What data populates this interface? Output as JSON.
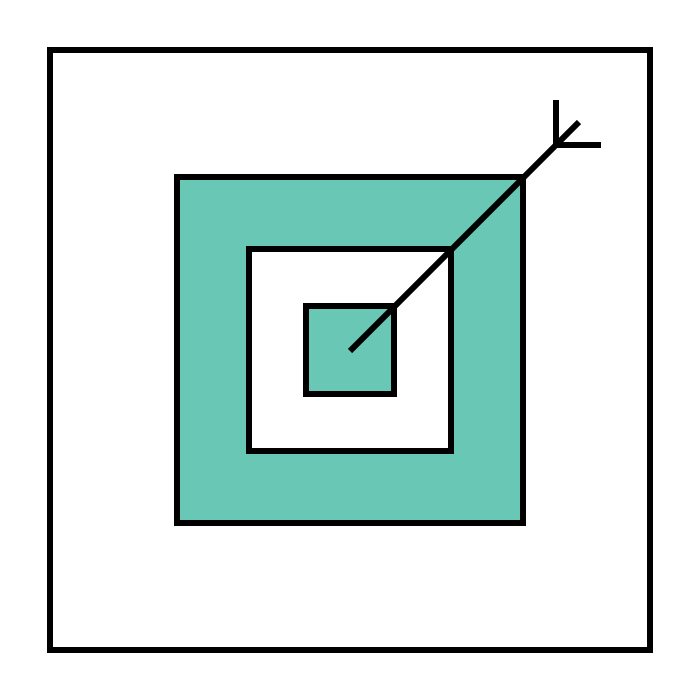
{
  "icon": "target-arrow-icon",
  "colors": {
    "background": "#ffffff",
    "stroke": "#000000",
    "accent": "#68c7b5",
    "inner_fill": "#ffffff"
  }
}
